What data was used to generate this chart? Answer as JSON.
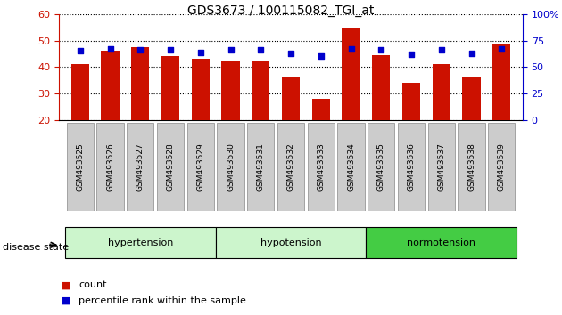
{
  "title": "GDS3673 / 100115082_TGI_at",
  "samples": [
    "GSM493525",
    "GSM493526",
    "GSM493527",
    "GSM493528",
    "GSM493529",
    "GSM493530",
    "GSM493531",
    "GSM493532",
    "GSM493533",
    "GSM493534",
    "GSM493535",
    "GSM493536",
    "GSM493537",
    "GSM493538",
    "GSM493539"
  ],
  "counts": [
    41,
    46,
    47.5,
    44,
    43,
    42,
    42,
    36,
    28,
    55,
    44.5,
    34,
    41,
    36.5,
    49
  ],
  "percentiles": [
    65,
    67,
    66,
    66,
    64,
    66,
    66,
    63,
    60,
    67,
    66,
    62,
    66,
    63,
    67
  ],
  "bar_color": "#cc1100",
  "dot_color": "#0000cc",
  "ylim_left": [
    20,
    60
  ],
  "ylim_right": [
    0,
    100
  ],
  "yticks_left": [
    20,
    30,
    40,
    50,
    60
  ],
  "yticks_right": [
    0,
    25,
    50,
    75,
    100
  ],
  "left_tick_color": "#cc1100",
  "right_tick_color": "#0000cc",
  "background_color": "#ffffff",
  "xtick_bg_color": "#cccccc",
  "group_colors": [
    "#ccf5cc",
    "#ccf5cc",
    "#44cc44"
  ],
  "group_labels": [
    "hypertension",
    "hypotension",
    "normotension"
  ],
  "group_starts": [
    0,
    5,
    10
  ],
  "group_ends": [
    5,
    10,
    15
  ],
  "legend_items": [
    "count",
    "percentile rank within the sample"
  ],
  "disease_state_label": "disease state"
}
